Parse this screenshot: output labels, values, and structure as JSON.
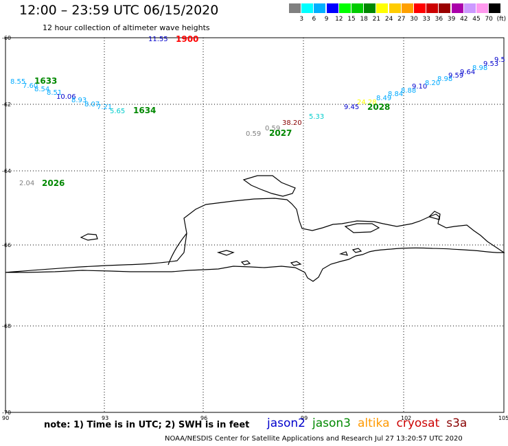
{
  "header": {
    "title": "12:00 – 23:59 UTC 06/15/2020",
    "subtitle": "12 hour collection of altimeter wave heights"
  },
  "legend": {
    "unit_label": "(ft)",
    "colors": [
      "#808080",
      "#00ffff",
      "#00b0ff",
      "#0000ff",
      "#00ff00",
      "#00cc00",
      "#008800",
      "#ffff00",
      "#ffcc00",
      "#ffa000",
      "#ff0000",
      "#cc0000",
      "#990000",
      "#aa00aa",
      "#cc99ff",
      "#ff99ee",
      "#000000"
    ],
    "labels": [
      "3",
      "6",
      "9",
      "12",
      "15",
      "18",
      "21",
      "24",
      "27",
      "30",
      "33",
      "36",
      "39",
      "42",
      "45",
      "70"
    ]
  },
  "axes": {
    "lat_labels": [
      "-60",
      "-62",
      "-64",
      "-66",
      "-68",
      "-70"
    ],
    "lon_labels": [
      "90",
      "93",
      "96",
      "99",
      "102",
      "105"
    ]
  },
  "tracks": [
    {
      "label": "1900",
      "color": "#ff0000",
      "values": [
        {
          "t": "11.55",
          "c": "#0000cc"
        }
      ]
    },
    {
      "label": "1633",
      "color": "#008800",
      "values": [
        {
          "t": "8.55",
          "c": "#00aaff"
        },
        {
          "t": "7.60",
          "c": "#00aaff"
        },
        {
          "t": "8.54",
          "c": "#00aaff"
        },
        {
          "t": "8.51",
          "c": "#00aaff"
        },
        {
          "t": "10.06",
          "c": "#0000cc"
        }
      ]
    },
    {
      "label": "1634",
      "color": "#008800",
      "values": [
        {
          "t": "8.93",
          "c": "#00aaff"
        },
        {
          "t": "8.07",
          "c": "#00aaff"
        },
        {
          "t": "7.21",
          "c": "#00aaff"
        },
        {
          "t": "5.65",
          "c": "#00cccc"
        }
      ]
    },
    {
      "label": "2027",
      "color": "#008800",
      "values": [
        {
          "t": "0.59",
          "c": "#808080"
        },
        {
          "t": "0.59",
          "c": "#808080"
        },
        {
          "t": "38.20",
          "c": "#880000"
        },
        {
          "t": "5.33",
          "c": "#00cccc"
        }
      ]
    },
    {
      "label": "2028",
      "color": "#008800",
      "values": [
        {
          "t": "9.45",
          "c": "#0000cc"
        },
        {
          "t": "24.28",
          "c": "#ffff00"
        },
        {
          "t": "8.49",
          "c": "#00aaff"
        },
        {
          "t": "8.84",
          "c": "#00aaff"
        },
        {
          "t": "8.88",
          "c": "#00aaff"
        },
        {
          "t": "9.10",
          "c": "#0000cc"
        },
        {
          "t": "8.20",
          "c": "#00aaff"
        },
        {
          "t": "8.98",
          "c": "#00aaff"
        },
        {
          "t": "9.59",
          "c": "#0000cc"
        },
        {
          "t": "9.64",
          "c": "#0000cc"
        },
        {
          "t": "8.98",
          "c": "#00aaff"
        },
        {
          "t": "9.53",
          "c": "#0000cc"
        },
        {
          "t": "9.5",
          "c": "#0000cc"
        }
      ]
    },
    {
      "label": "2026",
      "color": "#008800",
      "values": [
        {
          "t": "2.04",
          "c": "#808080"
        }
      ]
    }
  ],
  "footer": {
    "note": "note:  1) Time is in UTC;  2) SWH is in feet",
    "satellites": [
      {
        "name": "jason2",
        "color": "#0000cc"
      },
      {
        "name": "jason3",
        "color": "#008800"
      },
      {
        "name": "altika",
        "color": "#ff9900"
      },
      {
        "name": "cryosat",
        "color": "#cc0000"
      },
      {
        "name": "s3a",
        "color": "#880000"
      }
    ],
    "credit": "NOAA/NESDIS Center for Satellite Applications and Research    Jul 27 13:20:57 UTC 2020"
  }
}
